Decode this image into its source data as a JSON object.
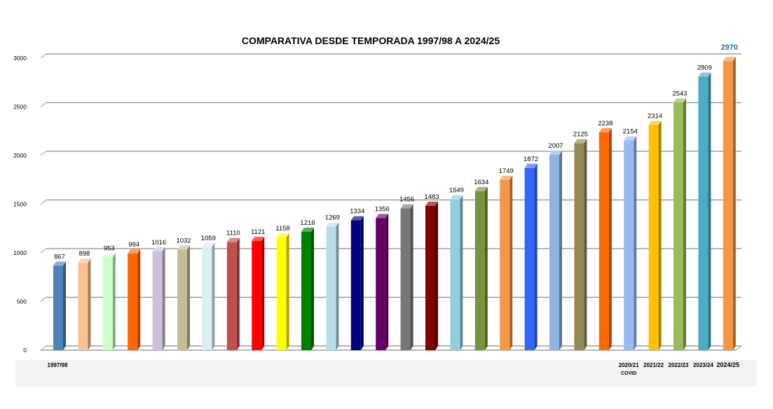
{
  "chart_data": {
    "type": "bar",
    "title": "COMPARATIVA DESDE TEMPORADA 1997/98 A 2024/25",
    "ylim": [
      0,
      3000
    ],
    "yticks": [
      0,
      500,
      1000,
      1500,
      2000,
      2500,
      3000
    ],
    "grid": true,
    "legend": "none",
    "values": [
      867,
      898,
      953,
      994,
      1016,
      1032,
      1059,
      1110,
      1121,
      1158,
      1216,
      1269,
      1334,
      1356,
      1456,
      1483,
      1549,
      1634,
      1749,
      1872,
      2007,
      2125,
      2238,
      2154,
      2314,
      2543,
      2809,
      2970
    ],
    "value_labels": [
      "867",
      "898",
      "953",
      "994",
      "1016",
      "1032",
      "1059",
      "1110",
      "1121",
      "1158",
      "1216",
      "1269",
      "1334",
      "1356",
      "1456",
      "1483",
      "1549",
      "1634",
      "1749",
      "1872",
      "2007",
      "2125",
      "2238",
      "2154",
      "2314",
      "2543",
      "2809",
      "2970"
    ],
    "colors": [
      "#4f81bd",
      "#fac090",
      "#ccffcc",
      "#ff6600",
      "#ccc0da",
      "#c4bd97",
      "#dbeef4",
      "#c0504d",
      "#ff0000",
      "#ffff00",
      "#008000",
      "#b7dee8",
      "#000080",
      "#660066",
      "#777777",
      "#800000",
      "#92cddc",
      "#77933c",
      "#f79646",
      "#3366ff",
      "#8db4e2",
      "#948a54",
      "#ff6600",
      "#99bbf5",
      "#ffc000",
      "#9bbb59",
      "#4bacc6",
      "#f79646"
    ],
    "x_labels": [
      {
        "index": 0,
        "text": "1997/98"
      },
      {
        "index": 23,
        "text": "2020/21",
        "sub": "COVID"
      },
      {
        "index": 24,
        "text": "2021/22"
      },
      {
        "index": 25,
        "text": "2022/23"
      },
      {
        "index": 26,
        "text": "2023/24"
      },
      {
        "index": 27,
        "text": "2024/25"
      }
    ],
    "highlight": {
      "index": 27,
      "color": "#1f6fb2"
    }
  }
}
